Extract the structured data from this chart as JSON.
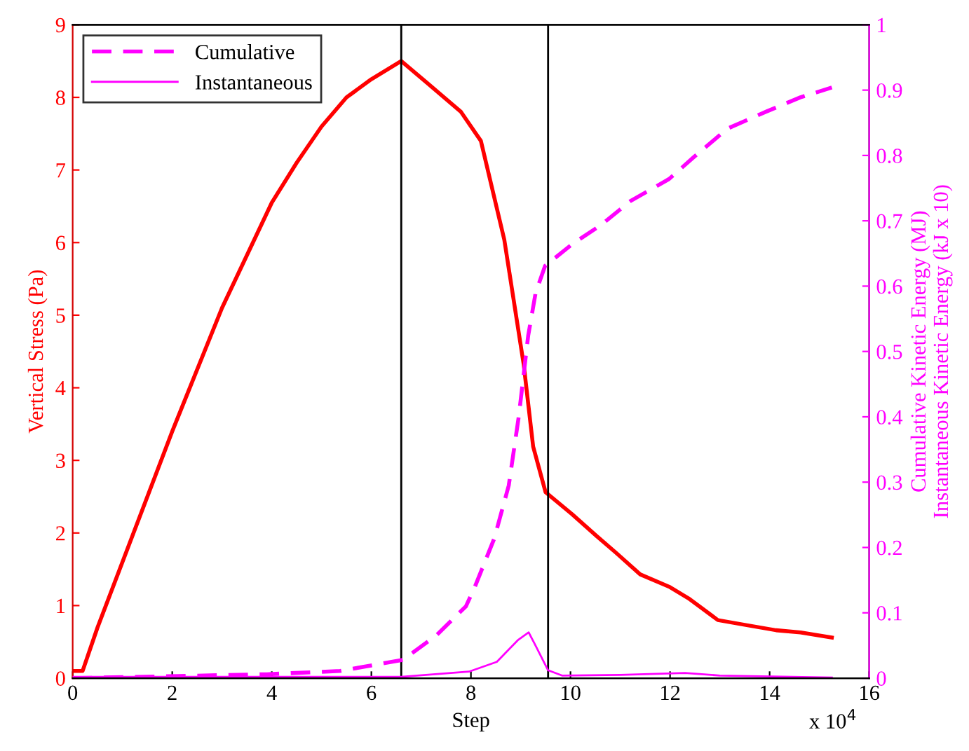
{
  "chart_data": {
    "type": "line",
    "xlabel": "Step",
    "ylabel": "Vertical Stress (Pa)",
    "y2label": "Cumulative Kinetic Energy (MJ)\nInstantaneous Kinetic Energy (kJ x 10)",
    "xlim": [
      0,
      16
    ],
    "xticks": [
      0,
      2,
      4,
      6,
      8,
      10,
      12,
      14,
      16
    ],
    "ylim": [
      0,
      9
    ],
    "yticks": [
      0,
      1,
      2,
      3,
      4,
      5,
      6,
      7,
      8,
      9
    ],
    "y2lim": [
      0,
      1
    ],
    "y2ticks": [
      0,
      0.1,
      0.2,
      0.3,
      0.4,
      0.5,
      0.6,
      0.7,
      0.8,
      0.9,
      1
    ],
    "legend": "top left",
    "grid": false,
    "annotations": [
      "x 10$^{4}$"
    ],
    "ref_lines": [
      {
        "axis": "x",
        "value": 6.6,
        "color": "#000000"
      },
      {
        "axis": "x",
        "value": 9.55,
        "color": "#000000"
      }
    ],
    "series": [
      {
        "color": "#ff0000",
        "line_style": "solid",
        "x": [
          0,
          0.2,
          0.5,
          1,
          2,
          3,
          4,
          4.5,
          5,
          5.5,
          6,
          6.6,
          7.12,
          7.8,
          8.2,
          8.67,
          9.06,
          9.25,
          9.5,
          10.03,
          10.52,
          10.91,
          11.4,
          11.98,
          12.37,
          12.96,
          13.54,
          14.13,
          14.62,
          15.25
        ],
        "values": [
          0.1,
          0.1,
          0.7,
          1.6,
          3.4,
          5.1,
          6.55,
          7.1,
          7.6,
          8.0,
          8.25,
          8.5,
          8.2,
          7.8,
          7.4,
          6.04,
          4.32,
          3.19,
          2.56,
          2.26,
          1.96,
          1.73,
          1.43,
          1.26,
          1.1,
          0.8,
          0.73,
          0.66,
          0.63,
          0.56
        ]
      },
      {
        "name": "Cumulative",
        "color": "#ff00ff",
        "axis": "y2",
        "line_style": "dashed",
        "x": [
          0,
          3.9,
          5.37,
          6.63,
          7.3,
          7.9,
          8.08,
          8.47,
          8.76,
          8.96,
          9.15,
          9.3,
          9.49,
          10.03,
          10.62,
          11.2,
          11.98,
          12.47,
          13.15,
          13.93,
          14.62,
          15.25
        ],
        "values": [
          0,
          0.006,
          0.011,
          0.028,
          0.065,
          0.11,
          0.14,
          0.214,
          0.295,
          0.4,
          0.524,
          0.59,
          0.631,
          0.664,
          0.694,
          0.73,
          0.764,
          0.797,
          0.841,
          0.867,
          0.889,
          0.904
        ]
      },
      {
        "name": "Instantaneous",
        "color": "#ff00ff",
        "axis": "y2",
        "line_style": "solid",
        "x": [
          0,
          6.6,
          7.96,
          8.52,
          8.94,
          9.16,
          9.27,
          9.55,
          9.83,
          11,
          12.3,
          13,
          15.25
        ],
        "values": [
          0.002,
          0.002,
          0.01,
          0.025,
          0.058,
          0.07,
          0.054,
          0.012,
          0.004,
          0.005,
          0.008,
          0.004,
          0.001
        ]
      }
    ]
  }
}
